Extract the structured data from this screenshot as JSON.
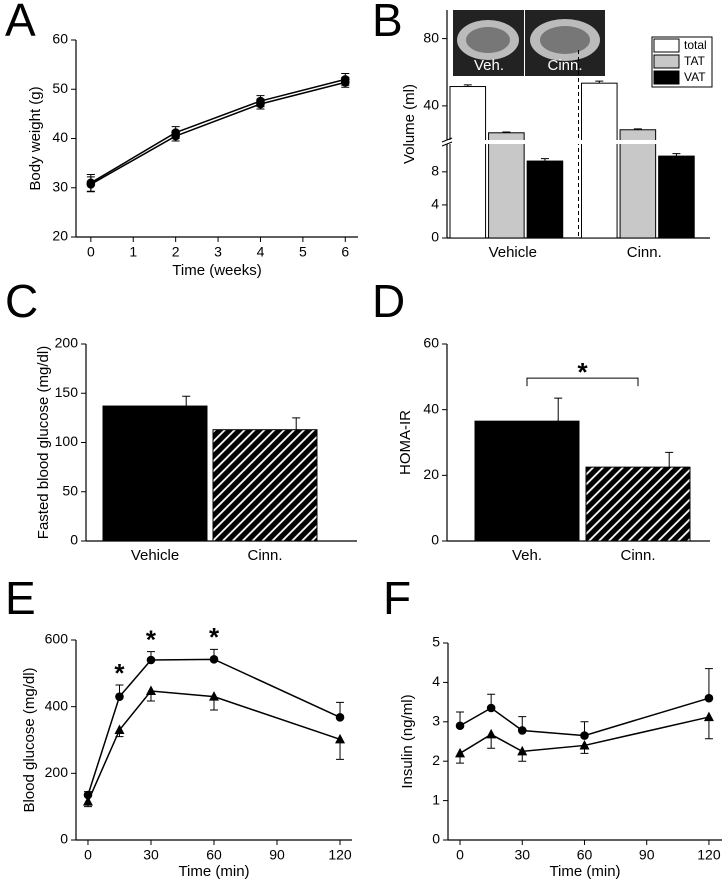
{
  "chart_data": [
    {
      "type": "line",
      "panel": "A",
      "xlabel": "Time (weeks)",
      "ylabel": "Body weight (g)",
      "x": [
        0,
        2,
        4,
        6
      ],
      "xlim": [
        -0.35,
        6.3
      ],
      "xticks": [
        0,
        1,
        2,
        3,
        4,
        5,
        6
      ],
      "ylim": [
        20,
        60
      ],
      "yticks": [
        20,
        30,
        40,
        50,
        60
      ],
      "series": [
        {
          "color": "#000000",
          "marker": "circle",
          "values": [
            31,
            41.2,
            47.6,
            52
          ],
          "errors": [
            1.7,
            1.2,
            1.1,
            1.2
          ],
          "error_direction": "both"
        },
        {
          "color": "#000000",
          "marker": "circle",
          "values": [
            30.7,
            40.5,
            47,
            51.4
          ],
          "errors": [
            1.5,
            1,
            1,
            1
          ],
          "error_direction": "both"
        }
      ]
    },
    {
      "type": "bar",
      "panel": "B",
      "ylabel": "Volume (ml)",
      "categories": [
        "Vehicle",
        "Cinn."
      ],
      "ylim": [
        0,
        97
      ],
      "axis_break": [
        11,
        21.5
      ],
      "yticks": [
        0,
        4,
        8,
        40,
        80
      ],
      "series": [
        {
          "name": "total",
          "color": "#ffffff",
          "values": [
            51.5,
            53.5
          ],
          "errors": [
            1,
            1.2
          ]
        },
        {
          "name": "TAT",
          "color": "#c8c8c8",
          "values": [
            24,
            25.8
          ],
          "errors": [
            0.5,
            0.5
          ]
        },
        {
          "name": "VAT",
          "color": "#000000",
          "values": [
            9.3,
            9.9
          ],
          "errors": [
            0.3,
            0.3
          ]
        }
      ],
      "legend": "top-right",
      "group_separator": "dashed",
      "inset_labels": [
        "Veh.",
        "Cinn."
      ]
    },
    {
      "type": "bar",
      "panel": "C",
      "ylabel": "Fasted blood glucose (mg/dl)",
      "categories": [
        "Vehicle",
        "Cinn."
      ],
      "values": [
        137,
        113
      ],
      "errors": [
        10,
        12
      ],
      "color": "#000000",
      "patterns": [
        "solid",
        "hatch"
      ],
      "ylim": [
        0,
        200
      ],
      "yticks": [
        0,
        50,
        100,
        150,
        200
      ]
    },
    {
      "type": "bar",
      "panel": "D",
      "ylabel": "HOMA-IR",
      "categories": [
        "Veh.",
        "Cinn."
      ],
      "values": [
        36.5,
        22.5
      ],
      "errors": [
        7,
        4.5
      ],
      "color": "#000000",
      "patterns": [
        "solid",
        "hatch"
      ],
      "ylim": [
        0,
        60
      ],
      "yticks": [
        0,
        20,
        40,
        60
      ],
      "significance": "*"
    },
    {
      "type": "line",
      "panel": "E",
      "xlabel": "Time (min)",
      "ylabel": "Blood glucose (mg/dl)",
      "x": [
        0,
        15,
        30,
        60,
        120
      ],
      "xlim": [
        -5.7,
        125.7
      ],
      "xticks": [
        0,
        30,
        60,
        90,
        120
      ],
      "ylim": [
        0,
        600
      ],
      "yticks": [
        0,
        200,
        400,
        600
      ],
      "series": [
        {
          "color": "#000000",
          "marker": "circle",
          "values": [
            135,
            430,
            540,
            542,
            368
          ],
          "errors": [
            10,
            35,
            25,
            30,
            45
          ],
          "error_direction": "up"
        },
        {
          "color": "#000000",
          "marker": "triangle",
          "values": [
            115,
            330,
            447,
            430,
            302
          ],
          "errors": [
            15,
            20,
            30,
            40,
            60
          ],
          "error_direction": "down"
        }
      ],
      "significance": "*",
      "significant_x": [
        15,
        30,
        60
      ]
    },
    {
      "type": "line",
      "panel": "F",
      "xlabel": "Time (min)",
      "ylabel": "Insulin (ng/ml)",
      "x": [
        0,
        15,
        30,
        60,
        120
      ],
      "xlim": [
        -5.8,
        126.3
      ],
      "xticks": [
        0,
        30,
        60,
        90,
        120
      ],
      "ylim": [
        0,
        5
      ],
      "yticks": [
        0,
        1,
        2,
        3,
        4,
        5
      ],
      "series": [
        {
          "color": "#000000",
          "marker": "circle",
          "values": [
            2.9,
            3.35,
            2.78,
            2.65,
            3.6
          ],
          "errors": [
            0.35,
            0.35,
            0.35,
            0.35,
            0.75
          ],
          "error_direction": "up"
        },
        {
          "color": "#000000",
          "marker": "triangle",
          "values": [
            2.2,
            2.68,
            2.25,
            2.4,
            3.12
          ],
          "errors": [
            0.25,
            0.35,
            0.25,
            0.2,
            0.55
          ],
          "error_direction": "down"
        }
      ]
    }
  ]
}
